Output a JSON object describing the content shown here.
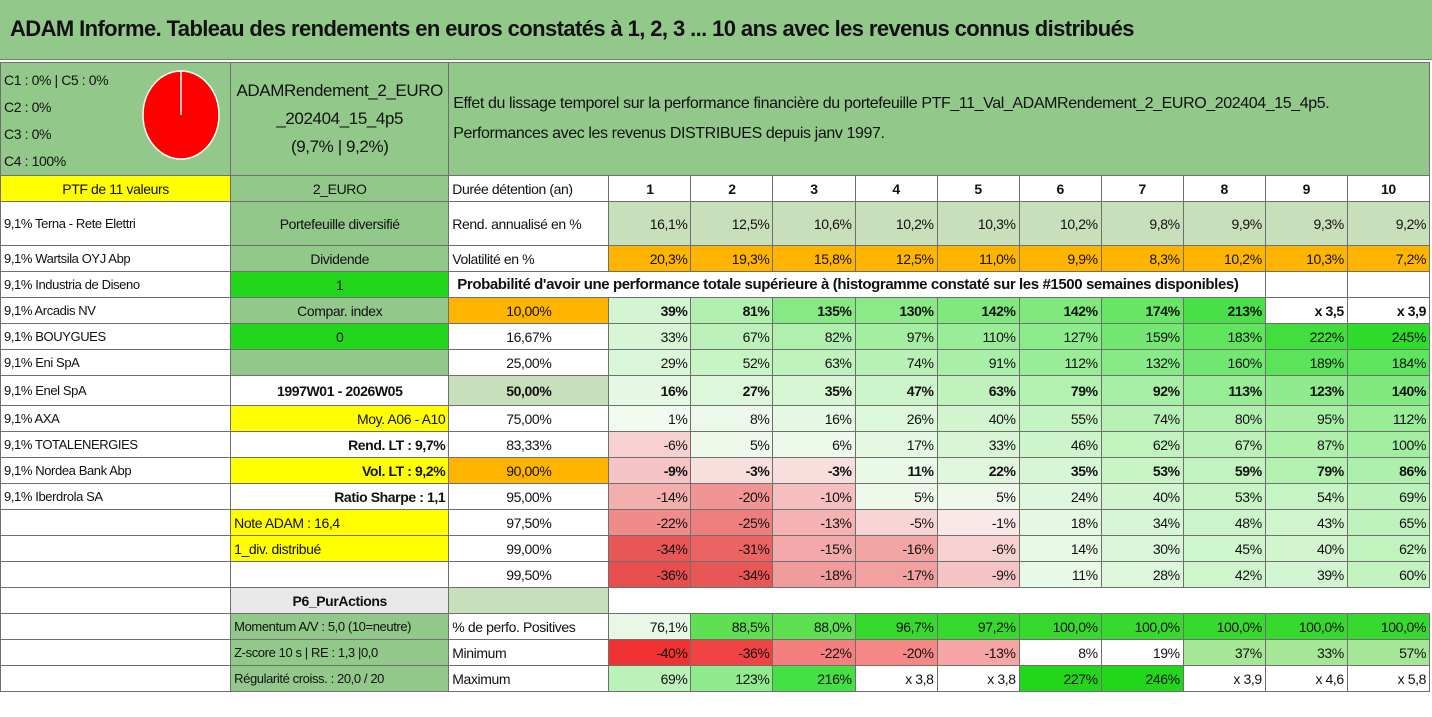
{
  "title": "ADAM Informe. Tableau des rendements en euros constatés à 1, 2, 3 ... 10 ans avec les revenus connus distribués",
  "allocation": {
    "c1c5": "C1 : 0% | C5 : 0%",
    "c2": "C2 : 0%",
    "c3": "C3 : 0%",
    "c4": "C4 : 100%",
    "pie_colors": [
      "#ff0000"
    ],
    "pie_values": [
      100
    ]
  },
  "portfolio": {
    "name_line1": "ADAMRendement_2_EURO",
    "name_line2": "_202404_15_4p5",
    "name_line3": "(9,7% | 9,2%)",
    "description_line1": "Effet du lissage temporel sur la performance financière du portefeuille PTF_11_Val_ADAMRendement_2_EURO_202404_15_4p5.",
    "description_line2": "Performances avec les revenus DISTRIBUES depuis janv 1997."
  },
  "left_labels": {
    "ptf": "PTF de 11 valeurs",
    "currency": "2_EURO",
    "diversified": "Portefeuille diversifié",
    "dividend": "Dividende",
    "dividend_value": "1",
    "compar_index": "Compar. index",
    "compar_value": "0",
    "period": "1997W01 - 2026W05",
    "moy": "Moy. A06 - A10",
    "rend_lt": "Rend. LT : 9,7%",
    "vol_lt": "Vol. LT : 9,2%",
    "sharpe": "Ratio Sharpe : 1,1",
    "note": "Note ADAM : 16,4",
    "div_distrib": "1_div. distribué",
    "p6": "P6_PurActions",
    "momentum": "Momentum A/V : 5,0 (10=neutre)",
    "zscore": "Z-score 10 s | RE : 1,3 |0,0",
    "regularite": "Régularité croiss. : 20,0 / 20"
  },
  "holdings": [
    "9,1% Terna - Rete Elettri",
    "9,1% Wartsila OYJ Abp",
    "9,1% Industria de Diseno",
    "9,1% Arcadis NV",
    "9,1% BOUYGUES",
    "9,1% Eni SpA",
    "9,1% Enel SpA",
    "9,1% AXA",
    "9,1% TOTALENERGIES",
    "9,1% Nordea Bank Abp",
    "9,1% Iberdrola SA"
  ],
  "metrics": {
    "duration_label": "Durée détention (an)",
    "years": [
      "1",
      "2",
      "3",
      "4",
      "5",
      "6",
      "7",
      "8",
      "9",
      "10"
    ],
    "rend_label": "Rend. annualisé en %",
    "rend": [
      "16,1%",
      "12,5%",
      "10,6%",
      "10,2%",
      "10,3%",
      "10,2%",
      "9,8%",
      "9,9%",
      "9,3%",
      "9,2%"
    ],
    "vol_label": "Volatilité en %",
    "vol": [
      "20,3%",
      "19,3%",
      "15,8%",
      "12,5%",
      "11,0%",
      "9,9%",
      "8,3%",
      "10,2%",
      "10,3%",
      "7,2%"
    ],
    "proba_title": "Probabilité d'avoir une performance totale supérieure à (histogramme constaté sur les #1500 semaines disponibles)"
  },
  "probabilities": [
    {
      "p": "10,00%",
      "v": [
        "39%",
        "81%",
        "135%",
        "130%",
        "142%",
        "142%",
        "174%",
        "213%",
        "x 3,5",
        "x 3,9"
      ]
    },
    {
      "p": "16,67%",
      "v": [
        "33%",
        "67%",
        "82%",
        "97%",
        "110%",
        "127%",
        "159%",
        "183%",
        "222%",
        "245%"
      ]
    },
    {
      "p": "25,00%",
      "v": [
        "29%",
        "52%",
        "63%",
        "74%",
        "91%",
        "112%",
        "132%",
        "160%",
        "189%",
        "184%"
      ]
    },
    {
      "p": "50,00%",
      "v": [
        "16%",
        "27%",
        "35%",
        "47%",
        "63%",
        "79%",
        "92%",
        "113%",
        "123%",
        "140%"
      ]
    },
    {
      "p": "75,00%",
      "v": [
        "1%",
        "8%",
        "16%",
        "26%",
        "40%",
        "55%",
        "74%",
        "80%",
        "95%",
        "112%"
      ]
    },
    {
      "p": "83,33%",
      "v": [
        "-6%",
        "5%",
        "6%",
        "17%",
        "33%",
        "46%",
        "62%",
        "67%",
        "87%",
        "100%"
      ]
    },
    {
      "p": "90,00%",
      "v": [
        "-9%",
        "-3%",
        "-3%",
        "11%",
        "22%",
        "35%",
        "53%",
        "59%",
        "79%",
        "86%"
      ]
    },
    {
      "p": "95,00%",
      "v": [
        "-14%",
        "-20%",
        "-10%",
        "5%",
        "5%",
        "24%",
        "40%",
        "53%",
        "54%",
        "69%"
      ]
    },
    {
      "p": "97,50%",
      "v": [
        "-22%",
        "-25%",
        "-13%",
        "-5%",
        "-1%",
        "18%",
        "34%",
        "48%",
        "43%",
        "65%"
      ]
    },
    {
      "p": "99,00%",
      "v": [
        "-34%",
        "-31%",
        "-15%",
        "-16%",
        "-6%",
        "14%",
        "30%",
        "45%",
        "40%",
        "62%"
      ]
    },
    {
      "p": "99,50%",
      "v": [
        "-36%",
        "-34%",
        "-18%",
        "-17%",
        "-9%",
        "11%",
        "28%",
        "42%",
        "39%",
        "60%"
      ]
    }
  ],
  "summary": {
    "pos_label": "% de perfo. Positives",
    "pos": [
      "76,1%",
      "88,5%",
      "88,0%",
      "96,7%",
      "97,2%",
      "100,0%",
      "100,0%",
      "100,0%",
      "100,0%",
      "100,0%"
    ],
    "min_label": "Minimum",
    "min": [
      "-40%",
      "-36%",
      "-22%",
      "-20%",
      "-13%",
      "8%",
      "19%",
      "37%",
      "33%",
      "57%"
    ],
    "max_label": "Maximum",
    "max": [
      "69%",
      "123%",
      "216%",
      "x 3,8",
      "x 3,8",
      "227%",
      "246%",
      "x 3,9",
      "x 4,6",
      "x 5,8"
    ]
  },
  "colors": {
    "title_bg": "#92c98a",
    "yellow": "#ffff00",
    "orange": "#ffb400",
    "green": "#22d61c"
  }
}
